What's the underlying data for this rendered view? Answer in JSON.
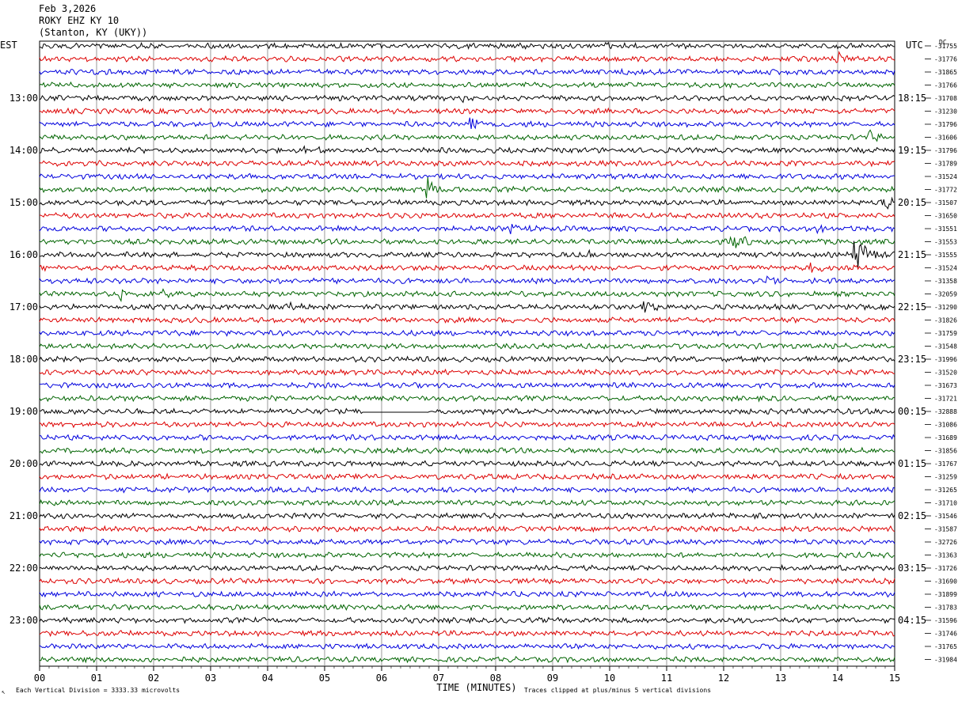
{
  "header": {
    "date": "Feb 3,2026",
    "station": "ROKY EHZ KY 10",
    "location": "(Stanton, KY (UKY))"
  },
  "chart_data": {
    "type": "line",
    "title": "ROKY EHZ KY 10",
    "left_timezone": "EST",
    "right_timezone": "UTC",
    "dc_label": "DC",
    "xlabel": "TIME (MINUTES)",
    "xlim": [
      0,
      15
    ],
    "x_ticks": [
      "00",
      "01",
      "02",
      "03",
      "04",
      "05",
      "06",
      "07",
      "08",
      "09",
      "10",
      "11",
      "12",
      "13",
      "14",
      "15"
    ],
    "left_hour_labels": [
      "13:00",
      "14:00",
      "15:00",
      "16:00",
      "17:00",
      "18:00",
      "19:00",
      "20:00",
      "21:00",
      "22:00",
      "23:00"
    ],
    "right_hour_labels": [
      "18:15",
      "19:15",
      "20:15",
      "21:15",
      "22:15",
      "23:15",
      "00:15",
      "01:15",
      "02:15",
      "03:15",
      "04:15"
    ],
    "trace_colors": [
      "#000000",
      "#dd0000",
      "#0000dd",
      "#006400"
    ],
    "dc_offsets": [
      "-31755",
      "-31776",
      "-31865",
      "-31766",
      "-31708",
      "-31230",
      "-31796",
      "-31606",
      "-31796",
      "-31789",
      "-31524",
      "-31772",
      "-31507",
      "-31650",
      "-31551",
      "-31553",
      "-31555",
      "-31524",
      "-31358",
      "-32059",
      "-31290",
      "-31826",
      "-31759",
      "-31548",
      "-31996",
      "-31520",
      "-31673",
      "-31721",
      "-32888",
      "-31086",
      "-31689",
      "-31856",
      "-31767",
      "-31259",
      "-31265",
      "-31710",
      "-31546",
      "-31587",
      "-32726",
      "-31363",
      "-31726",
      "-31690",
      "-31899",
      "-31783",
      "-31596",
      "-31746",
      "-31765",
      "-31984"
    ],
    "footer_left": "Each Vertical Division = 3333.33 microvolts",
    "footer_right": "Traces clipped at plus/minus 5 vertical divisions",
    "events": [
      {
        "trace": 0,
        "minute": 9.85,
        "amp": 7
      },
      {
        "trace": 1,
        "minute": 14.0,
        "amp": 9
      },
      {
        "trace": 4,
        "minute": 7.3,
        "amp": 6
      },
      {
        "trace": 6,
        "minute": 7.55,
        "amp": 11
      },
      {
        "trace": 7,
        "minute": 14.55,
        "amp": 8
      },
      {
        "trace": 8,
        "minute": 4.65,
        "amp": 7
      },
      {
        "trace": 11,
        "minute": 6.8,
        "amp": 16
      },
      {
        "trace": 12,
        "minute": 14.8,
        "amp": 12
      },
      {
        "trace": 14,
        "minute": 8.25,
        "amp": 6
      },
      {
        "trace": 14,
        "minute": 13.65,
        "amp": 9
      },
      {
        "trace": 15,
        "minute": 12.15,
        "amp": 11
      },
      {
        "trace": 16,
        "minute": 9.55,
        "amp": 6
      },
      {
        "trace": 16,
        "minute": 14.3,
        "amp": 26
      },
      {
        "trace": 17,
        "minute": 13.5,
        "amp": 6
      },
      {
        "trace": 18,
        "minute": 12.75,
        "amp": 7
      },
      {
        "trace": 19,
        "minute": 1.4,
        "amp": 8
      },
      {
        "trace": 19,
        "minute": 2.15,
        "amp": 6
      },
      {
        "trace": 20,
        "minute": 4.3,
        "amp": 6
      },
      {
        "trace": 20,
        "minute": 10.6,
        "amp": 10
      }
    ],
    "gap": {
      "trace": 28,
      "start_minute": 5.65,
      "end_minute": 6.8
    }
  }
}
